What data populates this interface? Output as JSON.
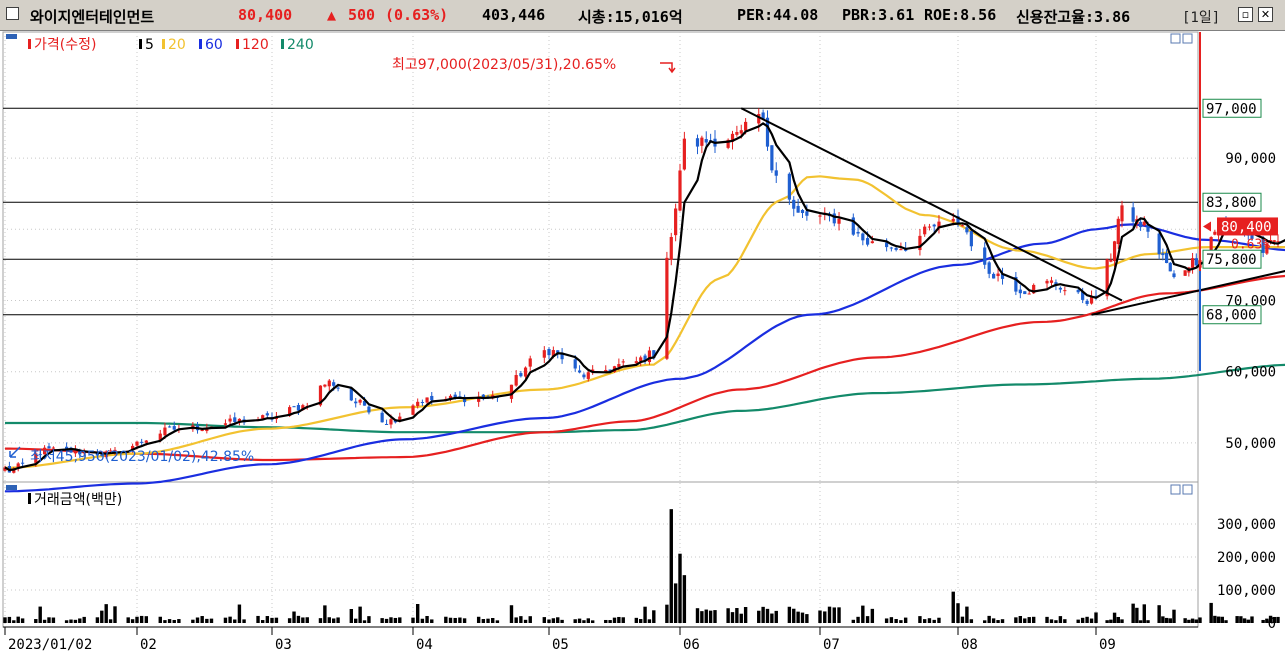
{
  "header": {
    "stock_name": "와이지엔터테인먼트",
    "price": "80,400",
    "change_arrow": "▲",
    "change": "500",
    "change_pct": "(0.63%)",
    "volume": "403,446",
    "market_cap": "시총:15,016억",
    "per": "PER:44.08",
    "pbr": "PBR:3.61",
    "roe": "ROE:8.56",
    "credit": "신용잔고율:3.86",
    "period": "[1일]"
  },
  "colors": {
    "ma5": "#000000",
    "ma20": "#f2c230",
    "ma60": "#1a2ee0",
    "ma120": "#e62020",
    "ma240": "#138a6a",
    "up": "#e62020",
    "down": "#1f5fd0"
  },
  "price_panel": {
    "legend": {
      "price": "가격(수정)",
      "ma5": "5",
      "ma20": "20",
      "ma60": "60",
      "ma120": "120",
      "ma240": "240"
    },
    "annotation_high": "최고97,000(2023/05/31),20.65%",
    "annotation_low": "최저45,950(2023/01/02),42.85%",
    "current_price_label": "80,400",
    "current_pct_label": "0.63%",
    "levels": [
      "97,000",
      "83,800",
      "75,800",
      "68,000"
    ],
    "y_ticks": [
      "90,000",
      "70,000",
      "60,000",
      "50,000"
    ]
  },
  "volume_panel": {
    "title": "거래금액(백만)",
    "y_ticks": [
      "300,000",
      "200,000",
      "100,000",
      "0"
    ]
  },
  "x_labels": [
    "2023/01/02",
    "02",
    "03",
    "04",
    "05",
    "06",
    "07",
    "08",
    "09"
  ],
  "chart_data": {
    "type": "candlestick",
    "title": "와이지엔터테인먼트",
    "x_axis": [
      "2023/01/02",
      "02",
      "03",
      "04",
      "05",
      "06",
      "07",
      "08",
      "09"
    ],
    "price_axis_ticks": [
      50000,
      60000,
      70000,
      90000
    ],
    "price_range": [
      43000,
      102000
    ],
    "horizontal_levels": [
      97000,
      83800,
      75800,
      68000
    ],
    "high": {
      "value": 97000,
      "date": "2023/05/31",
      "pct": 20.65
    },
    "low": {
      "value": 45950,
      "date": "2023/01/02",
      "pct": 42.85
    },
    "last_close": 80400,
    "change": 500,
    "change_pct": 0.63,
    "price_keypoints": [
      {
        "x": "2023/01/02",
        "close": 45950
      },
      {
        "x": "2023/01/12",
        "close": 49000
      },
      {
        "x": "2023/01/25",
        "close": 48500
      },
      {
        "x": "2023/02/10",
        "close": 52000
      },
      {
        "x": "2023/03/02",
        "close": 53500
      },
      {
        "x": "2023/03/08",
        "close": 55000
      },
      {
        "x": "2023/03/15",
        "close": 58500
      },
      {
        "x": "2023/03/22",
        "close": 55500
      },
      {
        "x": "2023/03/28",
        "close": 53000
      },
      {
        "x": "2023/04/05",
        "close": 56000
      },
      {
        "x": "2023/04/20",
        "close": 56500
      },
      {
        "x": "2023/05/02",
        "close": 63000
      },
      {
        "x": "2023/05/10",
        "close": 59500
      },
      {
        "x": "2023/05/20",
        "close": 61000
      },
      {
        "x": "2023/05/26",
        "close": 62500
      },
      {
        "x": "2023/05/30",
        "close": 79000
      },
      {
        "x": "2023/06/02",
        "close": 92000
      },
      {
        "x": "2023/06/14",
        "close": 93000
      },
      {
        "x": "2023/06/19",
        "close": 96000
      },
      {
        "x": "2023/06/23",
        "close": 88000
      },
      {
        "x": "2023/06/28",
        "close": 82000
      },
      {
        "x": "2023/07/06",
        "close": 81500
      },
      {
        "x": "2023/07/14",
        "close": 78000
      },
      {
        "x": "2023/07/20",
        "close": 77500
      },
      {
        "x": "2023/07/28",
        "close": 80500
      },
      {
        "x": "2023/08/01",
        "close": 81000
      },
      {
        "x": "2023/08/08",
        "close": 74000
      },
      {
        "x": "2023/08/16",
        "close": 71500
      },
      {
        "x": "2023/08/22",
        "close": 72500
      },
      {
        "x": "2023/08/28",
        "close": 70500
      },
      {
        "x": "2023/08/31",
        "close": 70000
      },
      {
        "x": "2023/09/04",
        "close": 75000
      },
      {
        "x": "2023/09/08",
        "close": 82500
      },
      {
        "x": "2023/09/14",
        "close": 80500
      },
      {
        "x": "2023/09/19",
        "close": 76000
      },
      {
        "x": "2023/09/22",
        "close": 73000
      },
      {
        "x": "2023/09/27",
        "close": 75500
      },
      {
        "x": "2023/10/05",
        "close": 80500
      },
      {
        "x": "2023/10/10",
        "close": 80000
      },
      {
        "x": "2023/10/16",
        "close": 77000
      },
      {
        "x": "2023/10/20",
        "close": 78500
      },
      {
        "x": "2023/10/25",
        "close": 80400
      }
    ],
    "moving_averages": [
      {
        "name": "20",
        "keypoints": [
          {
            "x": "2023/01/02",
            "v": 46500
          },
          {
            "x": "2023/02/01",
            "v": 48500
          },
          {
            "x": "2023/03/01",
            "v": 52000
          },
          {
            "x": "2023/04/01",
            "v": 55000
          },
          {
            "x": "2023/05/01",
            "v": 57500
          },
          {
            "x": "2023/05/26",
            "v": 61000
          },
          {
            "x": "2023/06/10",
            "v": 73000
          },
          {
            "x": "2023/06/24",
            "v": 84000
          },
          {
            "x": "2023/07/01",
            "v": 87500
          },
          {
            "x": "2023/07/10",
            "v": 87000
          },
          {
            "x": "2023/07/25",
            "v": 82000
          },
          {
            "x": "2023/08/15",
            "v": 77000
          },
          {
            "x": "2023/09/01",
            "v": 74500
          },
          {
            "x": "2023/09/15",
            "v": 76500
          },
          {
            "x": "2023/10/01",
            "v": 77500
          },
          {
            "x": "2023/10/25",
            "v": 77500
          }
        ]
      },
      {
        "name": "60",
        "keypoints": [
          {
            "x": "2023/01/02",
            "v": 43200
          },
          {
            "x": "2023/02/01",
            "v": 44300
          },
          {
            "x": "2023/03/01",
            "v": 47000
          },
          {
            "x": "2023/04/01",
            "v": 50500
          },
          {
            "x": "2023/05/01",
            "v": 53500
          },
          {
            "x": "2023/06/01",
            "v": 59000
          },
          {
            "x": "2023/07/01",
            "v": 68000
          },
          {
            "x": "2023/08/01",
            "v": 75000
          },
          {
            "x": "2023/08/20",
            "v": 78000
          },
          {
            "x": "2023/09/01",
            "v": 80000
          },
          {
            "x": "2023/09/10",
            "v": 80700
          },
          {
            "x": "2023/10/01",
            "v": 78500
          },
          {
            "x": "2023/10/25",
            "v": 77000
          }
        ]
      },
      {
        "name": "120",
        "keypoints": [
          {
            "x": "2023/01/02",
            "v": 49200
          },
          {
            "x": "2023/02/01",
            "v": 48500
          },
          {
            "x": "2023/03/01",
            "v": 47600
          },
          {
            "x": "2023/04/01",
            "v": 48000
          },
          {
            "x": "2023/05/01",
            "v": 51500
          },
          {
            "x": "2023/05/20",
            "v": 53000
          },
          {
            "x": "2023/06/15",
            "v": 57500
          },
          {
            "x": "2023/07/15",
            "v": 62000
          },
          {
            "x": "2023/08/20",
            "v": 67000
          },
          {
            "x": "2023/09/20",
            "v": 71000
          },
          {
            "x": "2023/10/25",
            "v": 73500
          }
        ]
      },
      {
        "name": "240",
        "keypoints": [
          {
            "x": "2023/01/02",
            "v": 52800
          },
          {
            "x": "2023/02/01",
            "v": 52800
          },
          {
            "x": "2023/03/01",
            "v": 52200
          },
          {
            "x": "2023/04/01",
            "v": 51500
          },
          {
            "x": "2023/05/01",
            "v": 51500
          },
          {
            "x": "2023/05/20",
            "v": 51800
          },
          {
            "x": "2023/06/15",
            "v": 54500
          },
          {
            "x": "2023/07/15",
            "v": 57000
          },
          {
            "x": "2023/08/15",
            "v": 58200
          },
          {
            "x": "2023/09/15",
            "v": 59000
          },
          {
            "x": "2023/10/25",
            "v": 61000
          }
        ]
      }
    ],
    "trendlines": [
      {
        "name": "resistance",
        "from": {
          "x": "2023/06/15",
          "v": 97000
        },
        "to": {
          "x": "2023/09/08",
          "v": 70000
        }
      },
      {
        "name": "support",
        "from": {
          "x": "2023/08/31",
          "v": 68000
        },
        "to": {
          "x": "2023/11/05",
          "v": 75800
        }
      }
    ],
    "volume_axis_ticks": [
      0,
      100000,
      200000,
      300000
    ],
    "volume_spikes": [
      {
        "x": "2023/05/30",
        "value": 345000
      },
      {
        "x": "2023/06/01",
        "value": 210000
      },
      {
        "x": "2023/06/02",
        "value": 145000
      },
      {
        "x": "2023/05/31",
        "value": 120000
      },
      {
        "x": "2023/07/31",
        "value": 95000
      }
    ]
  }
}
